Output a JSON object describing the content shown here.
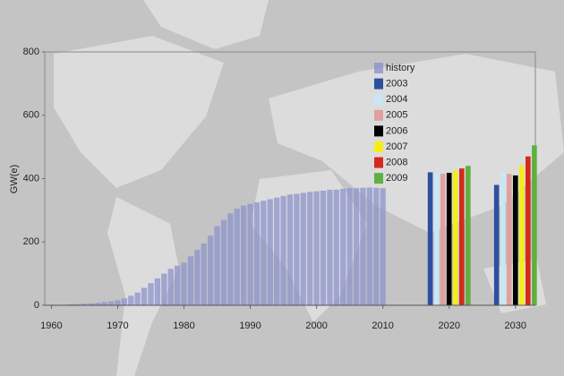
{
  "chart_data": {
    "type": "bar",
    "y_label": "GW(e)",
    "xlim": [
      1959,
      2033
    ],
    "xticks": [
      1960,
      1970,
      1980,
      1990,
      2000,
      2010,
      2020,
      2030
    ],
    "ylim": [
      0,
      800
    ],
    "yticks": [
      0,
      200,
      400,
      600,
      800
    ],
    "series": [
      {
        "name": "history",
        "color": "#8c94cc",
        "x": [
          1960,
          1961,
          1962,
          1963,
          1964,
          1965,
          1966,
          1967,
          1968,
          1969,
          1970,
          1971,
          1972,
          1973,
          1974,
          1975,
          1976,
          1977,
          1978,
          1979,
          1980,
          1981,
          1982,
          1983,
          1984,
          1985,
          1986,
          1987,
          1988,
          1989,
          1990,
          1991,
          1992,
          1993,
          1994,
          1995,
          1996,
          1997,
          1998,
          1999,
          2000,
          2001,
          2002,
          2003,
          2004,
          2005,
          2006,
          2007,
          2008,
          2009,
          2010
        ],
        "values": [
          0.5,
          1,
          2,
          3,
          4,
          5,
          6,
          8,
          10,
          12,
          16,
          22,
          30,
          40,
          55,
          70,
          85,
          100,
          115,
          125,
          135,
          155,
          175,
          195,
          220,
          250,
          270,
          290,
          305,
          315,
          320,
          325,
          330,
          335,
          340,
          345,
          350,
          352,
          355,
          358,
          360,
          362,
          365,
          365,
          368,
          370,
          370,
          371,
          372,
          371,
          370
        ]
      },
      {
        "name": "2003",
        "color": "#2e4ea0",
        "x": [
          2020,
          2030
        ],
        "values": [
          420,
          380
        ]
      },
      {
        "name": "2004",
        "color": "#c9e6f5",
        "x": [
          2020,
          2030
        ],
        "values": [
          418,
          420
        ]
      },
      {
        "name": "2005",
        "color": "#e0a0a0",
        "x": [
          2020,
          2030
        ],
        "values": [
          415,
          415
        ]
      },
      {
        "name": "2006",
        "color": "#000000",
        "x": [
          2020,
          2030
        ],
        "values": [
          418,
          410
        ]
      },
      {
        "name": "2007",
        "color": "#f5ec1c",
        "x": [
          2020,
          2030
        ],
        "values": [
          425,
          440
        ]
      },
      {
        "name": "2008",
        "color": "#d42a1e",
        "x": [
          2020,
          2030
        ],
        "values": [
          432,
          470
        ]
      },
      {
        "name": "2009",
        "color": "#5fb040",
        "x": [
          2020,
          2030
        ],
        "values": [
          440,
          505
        ]
      }
    ]
  }
}
